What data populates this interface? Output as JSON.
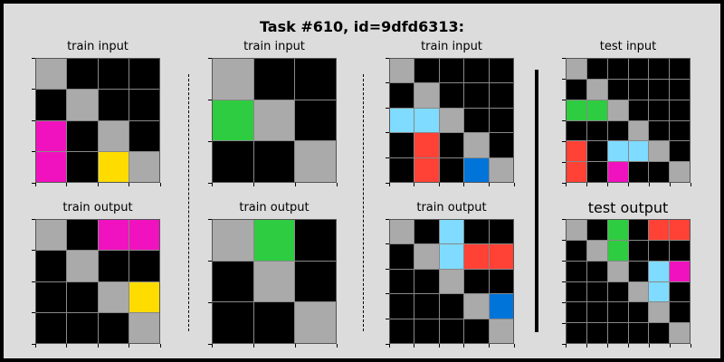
{
  "title": "Task #610, id=9dfd6313:",
  "colors": {
    "0": "#000000",
    "1": "#0074D9",
    "2": "#FF4136",
    "3": "#2ECC40",
    "4": "#FFDC00",
    "5": "#AAAAAA",
    "6": "#F012BE",
    "8": "#7FDBFF"
  },
  "panels": [
    {
      "label": "train input",
      "grid": [
        [
          5,
          0,
          0,
          0
        ],
        [
          0,
          5,
          0,
          0
        ],
        [
          6,
          0,
          5,
          0
        ],
        [
          6,
          0,
          4,
          5
        ]
      ]
    },
    {
      "label": "train output",
      "grid": [
        [
          5,
          0,
          6,
          6
        ],
        [
          0,
          5,
          0,
          0
        ],
        [
          0,
          0,
          5,
          4
        ],
        [
          0,
          0,
          0,
          5
        ]
      ]
    },
    {
      "label": "train input",
      "grid": [
        [
          5,
          0,
          0
        ],
        [
          3,
          5,
          0
        ],
        [
          0,
          0,
          5
        ]
      ]
    },
    {
      "label": "train output",
      "grid": [
        [
          5,
          3,
          0
        ],
        [
          0,
          5,
          0
        ],
        [
          0,
          0,
          5
        ]
      ]
    },
    {
      "label": "train input",
      "grid": [
        [
          5,
          0,
          0,
          0,
          0
        ],
        [
          0,
          5,
          0,
          0,
          0
        ],
        [
          8,
          8,
          5,
          0,
          0
        ],
        [
          0,
          2,
          0,
          5,
          0
        ],
        [
          0,
          2,
          0,
          1,
          5
        ]
      ]
    },
    {
      "label": "train output",
      "grid": [
        [
          5,
          0,
          8,
          0,
          0
        ],
        [
          0,
          5,
          8,
          2,
          2
        ],
        [
          0,
          0,
          5,
          0,
          0
        ],
        [
          0,
          0,
          0,
          5,
          1
        ],
        [
          0,
          0,
          0,
          0,
          5
        ]
      ]
    },
    {
      "label": "test input",
      "grid": [
        [
          5,
          0,
          0,
          0,
          0,
          0
        ],
        [
          0,
          5,
          0,
          0,
          0,
          0
        ],
        [
          3,
          3,
          5,
          0,
          0,
          0
        ],
        [
          0,
          0,
          0,
          5,
          0,
          0
        ],
        [
          2,
          0,
          8,
          8,
          5,
          0
        ],
        [
          2,
          0,
          6,
          0,
          0,
          5
        ]
      ]
    },
    {
      "label": "test output",
      "grid": [
        [
          5,
          0,
          3,
          0,
          2,
          2
        ],
        [
          0,
          5,
          3,
          0,
          0,
          0
        ],
        [
          0,
          0,
          5,
          0,
          8,
          6
        ],
        [
          0,
          0,
          0,
          5,
          8,
          0
        ],
        [
          0,
          0,
          0,
          0,
          5,
          0
        ],
        [
          0,
          0,
          0,
          0,
          0,
          5
        ]
      ]
    }
  ]
}
